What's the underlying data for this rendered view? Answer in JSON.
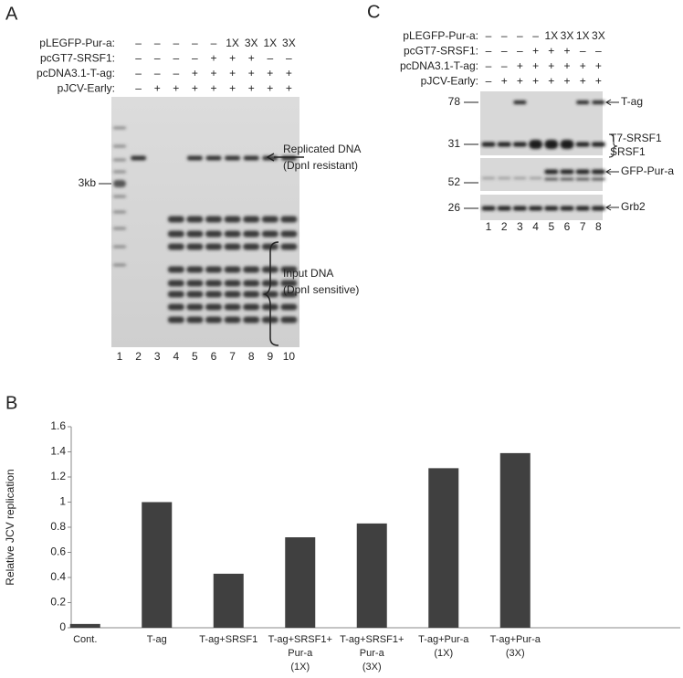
{
  "panel_a": {
    "label": "A",
    "rows": [
      {
        "name": "pLEGFP-Pur-a:",
        "marks": [
          "–",
          "–",
          "–",
          "–",
          "–",
          "1X",
          "3X",
          "1X",
          "3X"
        ]
      },
      {
        "name": "pcGT7-SRSF1:",
        "marks": [
          "–",
          "–",
          "–",
          "–",
          "+",
          "+",
          "+",
          "–",
          "–"
        ]
      },
      {
        "name": "pcDNA3.1-T-ag:",
        "marks": [
          "–",
          "–",
          "–",
          "+",
          "+",
          "+",
          "+",
          "+",
          "+"
        ]
      },
      {
        "name": "pJCV-Early:",
        "marks": [
          "–",
          "+",
          "+",
          "+",
          "+",
          "+",
          "+",
          "+",
          "+"
        ]
      }
    ],
    "lanes": [
      "1",
      "2",
      "3",
      "4",
      "5",
      "6",
      "7",
      "8",
      "9",
      "10"
    ],
    "marker": "3kb",
    "replicated": [
      "Replicated DNA",
      "(DpnI resistant)"
    ],
    "input": [
      "Input DNA",
      "(DpnI sensitive)"
    ]
  },
  "panel_c": {
    "label": "C",
    "rows": [
      {
        "name": "pLEGFP-Pur-a:",
        "marks": [
          "–",
          "–",
          "–",
          "–",
          "1X",
          "3X",
          "1X",
          "3X"
        ]
      },
      {
        "name": "pcGT7-SRSF1:",
        "marks": [
          "–",
          "–",
          "–",
          "+",
          "+",
          "+",
          "–",
          "–"
        ]
      },
      {
        "name": "pcDNA3.1-T-ag:",
        "marks": [
          "–",
          "–",
          "+",
          "+",
          "+",
          "+",
          "+",
          "+"
        ]
      },
      {
        "name": "pJCV-Early:",
        "marks": [
          "–",
          "+",
          "+",
          "+",
          "+",
          "+",
          "+",
          "+"
        ]
      }
    ],
    "lanes": [
      "1",
      "2",
      "3",
      "4",
      "5",
      "6",
      "7",
      "8"
    ],
    "mw": [
      "78",
      "31",
      "52",
      "26"
    ],
    "bands": [
      "T-ag",
      "T7-SRSF1",
      "SRSF1",
      "GFP-Pur-a",
      "Grb2"
    ]
  },
  "chart_data": {
    "type": "bar",
    "panel_label": "B",
    "ylabel": "Relative JCV replication",
    "categories": [
      "Cont.",
      "T-ag",
      "T-ag+SRSF1",
      "T-ag+SRSF1+\nPur-a\n(1X)",
      "T-ag+SRSF1+\nPur-a\n(3X)",
      "T-ag+Pur-a\n(1X)",
      "T-ag+Pur-a\n(3X)"
    ],
    "values": [
      0.03,
      1.0,
      0.43,
      0.72,
      0.83,
      1.27,
      1.39
    ],
    "color": "#404040",
    "ylim": [
      0,
      1.6
    ],
    "yticks": [
      0,
      0.2,
      0.4,
      0.6,
      0.8,
      1,
      1.2,
      1.4,
      1.6
    ]
  }
}
